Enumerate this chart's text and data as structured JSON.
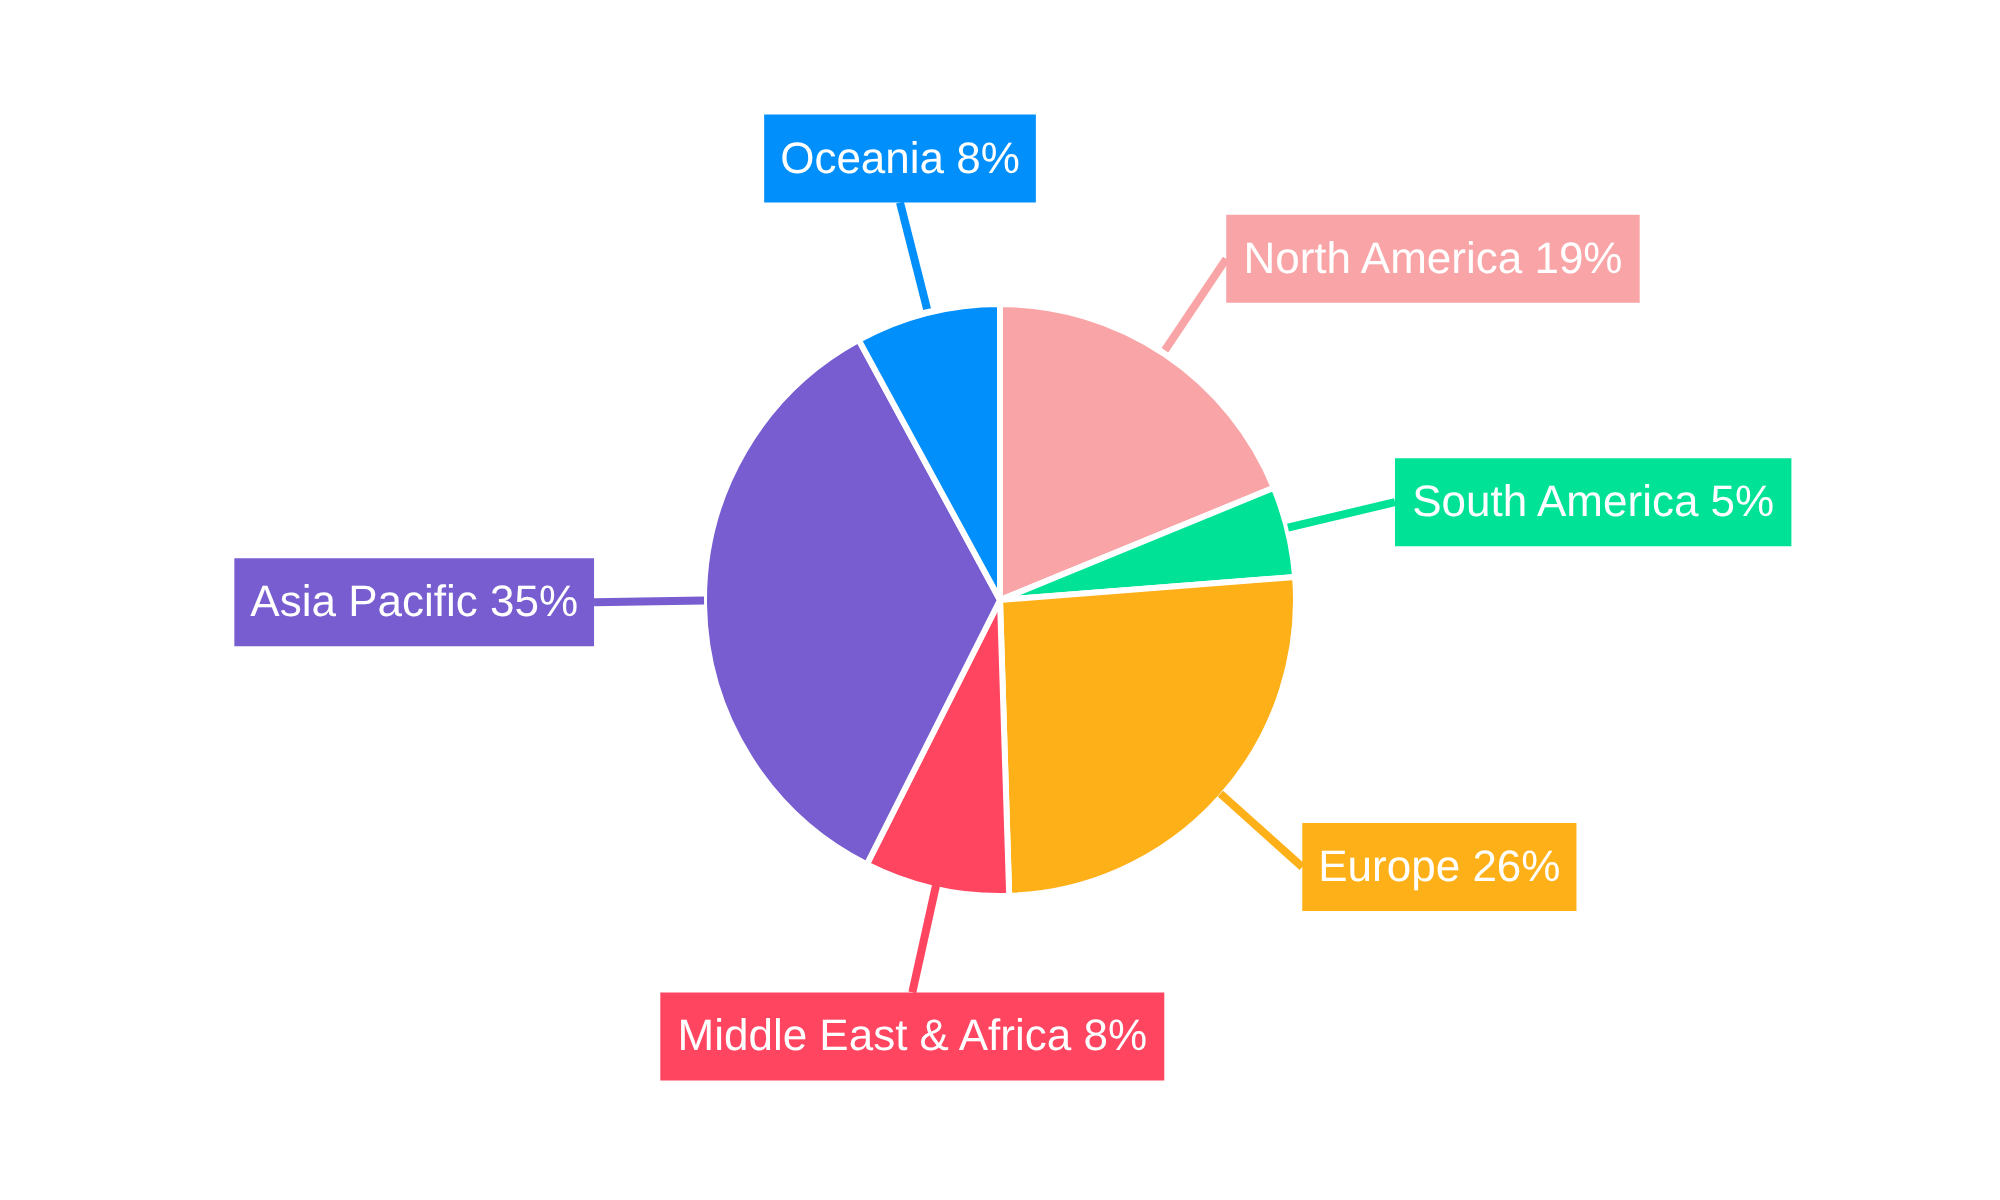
{
  "chart_data": {
    "type": "pie",
    "categories": [
      "North America",
      "South America",
      "Europe",
      "Middle East & Africa",
      "Asia Pacific",
      "Oceania"
    ],
    "values": [
      19,
      5,
      26,
      8,
      35,
      8
    ],
    "value_labels": [
      "19%",
      "5%",
      "26%",
      "8%",
      "35%",
      "8%"
    ],
    "colors": [
      "#f9a5a7",
      "#00e396",
      "#feb019",
      "#ff4560",
      "#775dd0",
      "#008ffb"
    ]
  }
}
